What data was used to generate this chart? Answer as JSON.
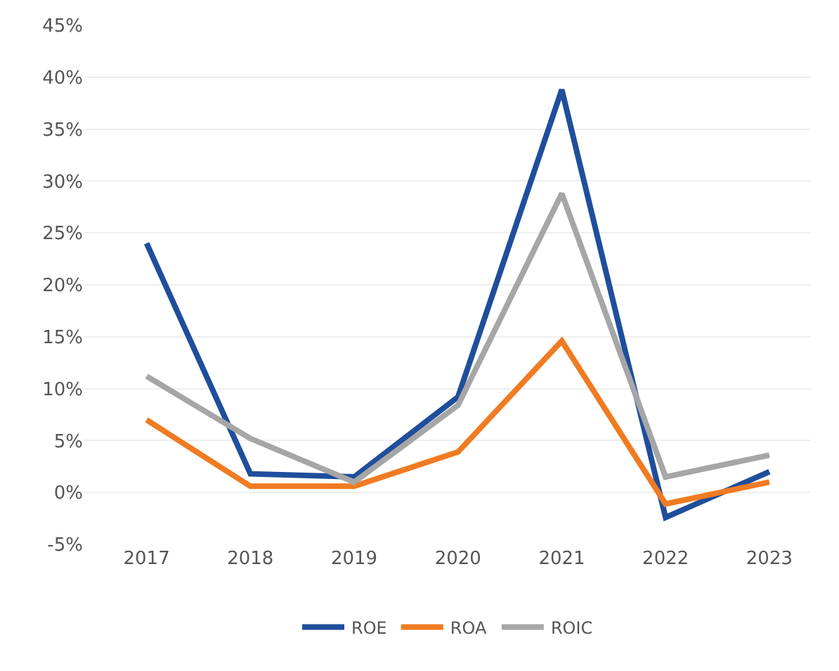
{
  "chart_data": {
    "type": "line",
    "categories": [
      "2017",
      "2018",
      "2019",
      "2020",
      "2021",
      "2022",
      "2023"
    ],
    "series": [
      {
        "name": "ROE",
        "color": "#1f4e9c",
        "values": [
          24,
          1.8,
          1.5,
          9.2,
          38.8,
          -2.4,
          2
        ]
      },
      {
        "name": "ROA",
        "color": "#f07b22",
        "values": [
          7,
          0.6,
          0.6,
          3.9,
          14.6,
          -1.1,
          1
        ]
      },
      {
        "name": "ROIC",
        "color": "#a6a6a6",
        "values": [
          11.2,
          5.2,
          1,
          8.4,
          28.8,
          1.5,
          3.6
        ]
      }
    ],
    "ylim": [
      -5,
      45
    ],
    "yticks": [
      {
        "value": -5,
        "label": "-5%"
      },
      {
        "value": 0,
        "label": "0%"
      },
      {
        "value": 5,
        "label": "5%"
      },
      {
        "value": 10,
        "label": "10%"
      },
      {
        "value": 15,
        "label": "15%"
      },
      {
        "value": 20,
        "label": "20%"
      },
      {
        "value": 25,
        "label": "25%"
      },
      {
        "value": 30,
        "label": "30%"
      },
      {
        "value": 35,
        "label": "35%"
      },
      {
        "value": 40,
        "label": "40%"
      },
      {
        "value": 45,
        "label": "45%"
      }
    ],
    "grid": "y",
    "legend": "bottom",
    "marker": "none",
    "line_style": "solid"
  }
}
